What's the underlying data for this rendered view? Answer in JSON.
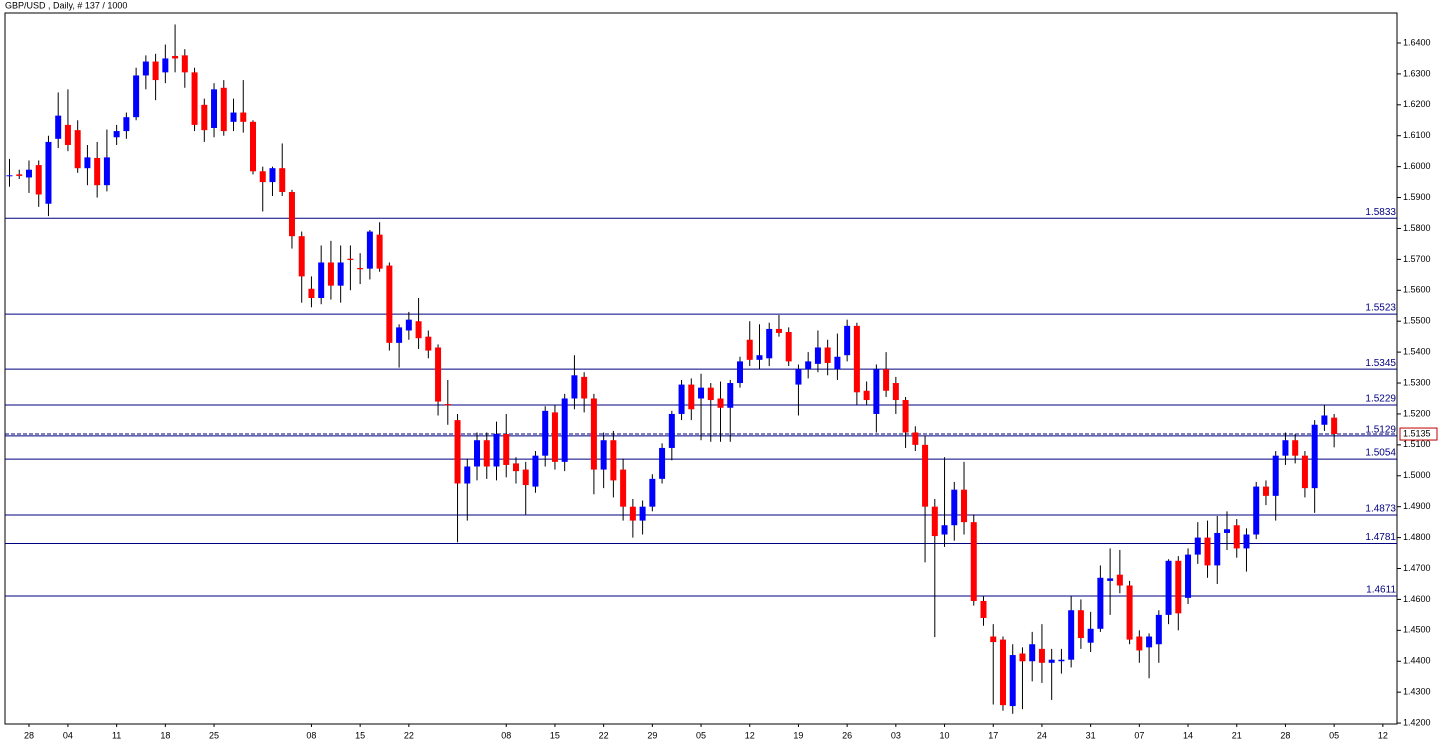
{
  "chart_data": {
    "type": "candlestick",
    "title": "GBP/USD , Daily, # 137 / 1000",
    "up_color": "#0000ff",
    "down_color": "#ff0000",
    "wick_color": "#000000",
    "level_color": "#000080",
    "grid": false,
    "ylim": [
      1.4197,
      1.6497
    ],
    "yticks": [
      {
        "value": 1.42,
        "label": "1.4200"
      },
      {
        "value": 1.43,
        "label": "1.4300"
      },
      {
        "value": 1.44,
        "label": "1.4400"
      },
      {
        "value": 1.45,
        "label": "1.4500"
      },
      {
        "value": 1.46,
        "label": "1.4600"
      },
      {
        "value": 1.47,
        "label": "1.4700"
      },
      {
        "value": 1.48,
        "label": "1.4800"
      },
      {
        "value": 1.49,
        "label": "1.4900"
      },
      {
        "value": 1.5,
        "label": "1.5000"
      },
      {
        "value": 1.51,
        "label": "1.5100"
      },
      {
        "value": 1.52,
        "label": "1.5200"
      },
      {
        "value": 1.53,
        "label": "1.5300"
      },
      {
        "value": 1.54,
        "label": "1.5400"
      },
      {
        "value": 1.55,
        "label": "1.5500"
      },
      {
        "value": 1.56,
        "label": "1.5600"
      },
      {
        "value": 1.57,
        "label": "1.5700"
      },
      {
        "value": 1.58,
        "label": "1.5800"
      },
      {
        "value": 1.59,
        "label": "1.5900"
      },
      {
        "value": 1.6,
        "label": "1.6000"
      },
      {
        "value": 1.61,
        "label": "1.6100"
      },
      {
        "value": 1.62,
        "label": "1.6200"
      },
      {
        "value": 1.63,
        "label": "1.6300"
      },
      {
        "value": 1.64,
        "label": "1.6400"
      }
    ],
    "levels": [
      1.5833,
      1.5523,
      1.5345,
      1.5229,
      1.5129,
      1.5054,
      1.4873,
      1.4781,
      1.4611
    ],
    "last_price": 1.5135,
    "categories": [
      null,
      null,
      "28",
      null,
      null,
      null,
      "04",
      null,
      null,
      null,
      null,
      "11",
      null,
      null,
      null,
      null,
      "18",
      null,
      null,
      null,
      null,
      "25",
      null,
      null,
      null,
      null,
      null,
      null,
      null,
      null,
      null,
      "08",
      null,
      null,
      null,
      null,
      "15",
      null,
      null,
      null,
      null,
      "22",
      null,
      null,
      null,
      null,
      null,
      null,
      null,
      null,
      null,
      "08",
      null,
      null,
      null,
      null,
      "15",
      null,
      null,
      null,
      null,
      "22",
      null,
      null,
      null,
      null,
      "29",
      null,
      null,
      null,
      null,
      "05",
      null,
      null,
      null,
      null,
      "12",
      null,
      null,
      null,
      null,
      "19",
      null,
      null,
      null,
      null,
      "26",
      null,
      null,
      null,
      null,
      "03",
      null,
      null,
      null,
      null,
      "10",
      null,
      null,
      null,
      null,
      "17",
      null,
      null,
      null,
      null,
      "24",
      null,
      null,
      null,
      null,
      "31",
      null,
      null,
      null,
      null,
      "07",
      null,
      null,
      null,
      null,
      "14",
      null,
      null,
      null,
      null,
      "21",
      null,
      null,
      null,
      null,
      "28",
      null,
      null,
      null,
      null,
      "05",
      null,
      null,
      null,
      null,
      "12"
    ],
    "open": [
      1.597,
      1.5975,
      1.5965,
      1.6005,
      1.588,
      1.609,
      1.6135,
      1.6118,
      1.5995,
      1.6028,
      1.594,
      1.6095,
      1.6115,
      1.616,
      1.6295,
      1.634,
      1.6305,
      1.6358,
      1.636,
      1.6305,
      1.62,
      1.6125,
      1.6255,
      1.6145,
      1.6175,
      1.6145,
      1.5985,
      1.595,
      1.5995,
      1.5918,
      1.5775,
      1.5605,
      1.5575,
      1.569,
      1.5615,
      1.5702,
      1.5672,
      1.567,
      1.578,
      1.568,
      1.543,
      1.547,
      1.55,
      1.545,
      1.5415,
      1.5232,
      1.518,
      1.4975,
      1.503,
      1.5115,
      1.503,
      1.5135,
      1.504,
      1.502,
      1.4965,
      1.5065,
      1.5205,
      1.5045,
      1.525,
      1.532,
      1.525,
      1.502,
      1.5115,
      1.502,
      1.49,
      1.4855,
      1.49,
      1.499,
      1.509,
      1.52,
      1.5295,
      1.525,
      1.5285,
      1.525,
      1.522,
      1.53,
      1.544,
      1.5375,
      1.538,
      1.5475,
      1.5465,
      1.5295,
      1.5345,
      1.5362,
      1.5415,
      1.5345,
      1.539,
      1.5485,
      1.5275,
      1.52,
      1.5345,
      1.53,
      1.5245,
      1.514,
      1.51,
      1.49,
      1.481,
      1.484,
      1.4955,
      1.485,
      1.4595,
      1.448,
      1.447,
      1.4255,
      1.4425,
      1.44,
      1.444,
      1.4395,
      1.44,
      1.4405,
      1.4565,
      1.446,
      1.4505,
      1.466,
      1.468,
      1.4645,
      1.448,
      1.4445,
      1.4455,
      1.455,
      1.4725,
      1.4605,
      1.4745,
      1.48,
      1.471,
      1.4815,
      1.484,
      1.4765,
      1.481,
      1.4965,
      1.4935,
      1.5065,
      1.5115,
      1.5065,
      1.496,
      1.5165,
      1.5188,
      null,
      null,
      null,
      null,
      null
    ],
    "high": [
      1.6025,
      1.599,
      1.602,
      1.602,
      1.61,
      1.624,
      1.625,
      1.615,
      1.607,
      1.608,
      1.612,
      1.6135,
      1.6175,
      1.632,
      1.636,
      1.6365,
      1.6395,
      1.646,
      1.638,
      1.632,
      1.622,
      1.627,
      1.628,
      1.622,
      1.628,
      1.615,
      1.6,
      1.6,
      1.6075,
      1.5925,
      1.579,
      1.5645,
      1.5745,
      1.576,
      1.5745,
      1.5745,
      1.572,
      1.5795,
      1.582,
      1.569,
      1.549,
      1.553,
      1.5575,
      1.547,
      1.5425,
      1.531,
      1.52,
      1.5055,
      1.514,
      1.514,
      1.5175,
      1.52,
      1.506,
      1.5045,
      1.508,
      1.5225,
      1.523,
      1.5265,
      1.539,
      1.5335,
      1.5265,
      1.514,
      1.5145,
      1.5055,
      1.4925,
      1.492,
      1.5005,
      1.5105,
      1.521,
      1.531,
      1.5315,
      1.533,
      1.53,
      1.5305,
      1.531,
      1.5385,
      1.55,
      1.549,
      1.5495,
      1.552,
      1.548,
      1.536,
      1.54,
      1.547,
      1.544,
      1.546,
      1.5505,
      1.5495,
      1.5305,
      1.536,
      1.54,
      1.532,
      1.5255,
      1.516,
      1.513,
      1.4925,
      1.506,
      1.498,
      1.5045,
      1.4875,
      1.461,
      1.452,
      1.448,
      1.4455,
      1.4445,
      1.4495,
      1.452,
      1.444,
      1.444,
      1.461,
      1.46,
      1.456,
      1.471,
      1.4765,
      1.476,
      1.466,
      1.45,
      1.449,
      1.4565,
      1.473,
      1.474,
      1.4765,
      1.485,
      1.4855,
      1.487,
      1.4885,
      1.486,
      1.483,
      1.498,
      1.4985,
      1.508,
      1.514,
      1.5135,
      1.508,
      1.518,
      1.523,
      1.52,
      null,
      null,
      null,
      null,
      null
    ],
    "low": [
      1.5935,
      1.596,
      1.5915,
      1.587,
      1.584,
      1.606,
      1.605,
      1.598,
      1.594,
      1.59,
      1.592,
      1.607,
      1.609,
      1.615,
      1.625,
      1.6215,
      1.627,
      1.6305,
      1.6255,
      1.6115,
      1.608,
      1.6095,
      1.61,
      1.6115,
      1.611,
      1.5975,
      1.5855,
      1.5905,
      1.5905,
      1.5735,
      1.556,
      1.5545,
      1.5555,
      1.557,
      1.556,
      1.56,
      1.562,
      1.5635,
      1.566,
      1.5405,
      1.535,
      1.544,
      1.541,
      1.538,
      1.5195,
      1.5165,
      1.4785,
      1.4855,
      1.4985,
      1.499,
      1.4985,
      1.4995,
      1.4975,
      1.4875,
      1.4945,
      1.503,
      1.502,
      1.5015,
      1.5215,
      1.5205,
      1.494,
      1.496,
      1.493,
      1.4855,
      1.48,
      1.481,
      1.4885,
      1.4975,
      1.505,
      1.518,
      1.518,
      1.5115,
      1.511,
      1.511,
      1.511,
      1.5285,
      1.5355,
      1.5345,
      1.5355,
      1.545,
      1.5355,
      1.5195,
      1.5315,
      1.5335,
      1.5325,
      1.531,
      1.537,
      1.523,
      1.523,
      1.514,
      1.5255,
      1.52,
      1.509,
      1.508,
      1.472,
      1.4478,
      1.477,
      1.479,
      1.481,
      1.458,
      1.4515,
      1.426,
      1.424,
      1.423,
      1.4245,
      1.4335,
      1.433,
      1.4275,
      1.436,
      1.438,
      1.444,
      1.443,
      1.4495,
      1.455,
      1.462,
      1.4455,
      1.4395,
      1.4345,
      1.4395,
      1.452,
      1.45,
      1.4585,
      1.4715,
      1.467,
      1.465,
      1.476,
      1.4735,
      1.469,
      1.4795,
      1.4905,
      1.4855,
      1.5035,
      1.504,
      1.493,
      1.488,
      1.5145,
      1.5092,
      null,
      null,
      null,
      null,
      null
    ],
    "close": [
      1.5972,
      1.597,
      1.599,
      1.591,
      1.608,
      1.6165,
      1.607,
      1.5995,
      1.603,
      1.594,
      1.603,
      1.6115,
      1.616,
      1.6295,
      1.634,
      1.628,
      1.635,
      1.635,
      1.6305,
      1.6135,
      1.6118,
      1.625,
      1.6115,
      1.6175,
      1.6145,
      1.5985,
      1.595,
      1.5995,
      1.5918,
      1.5775,
      1.5645,
      1.5575,
      1.569,
      1.5615,
      1.569,
      1.5698,
      1.5668,
      1.579,
      1.567,
      1.543,
      1.548,
      1.5505,
      1.5445,
      1.5405,
      1.524,
      1.5228,
      1.4975,
      1.503,
      1.5115,
      1.503,
      1.5135,
      1.5035,
      1.5015,
      1.497,
      1.5065,
      1.521,
      1.5045,
      1.525,
      1.5325,
      1.525,
      1.502,
      1.5115,
      1.4985,
      1.49,
      1.4855,
      1.49,
      1.499,
      1.509,
      1.52,
      1.5295,
      1.5215,
      1.5285,
      1.5245,
      1.522,
      1.53,
      1.537,
      1.5375,
      1.539,
      1.5475,
      1.5462,
      1.537,
      1.5345,
      1.537,
      1.5415,
      1.5365,
      1.5385,
      1.5485,
      1.527,
      1.5245,
      1.5345,
      1.5275,
      1.5245,
      1.514,
      1.51,
      1.49,
      1.4805,
      1.484,
      1.4955,
      1.485,
      1.4595,
      1.454,
      1.4462,
      1.4258,
      1.442,
      1.44,
      1.4455,
      1.4395,
      1.4405,
      1.4405,
      1.4565,
      1.4475,
      1.4505,
      1.467,
      1.4668,
      1.4645,
      1.447,
      1.4435,
      1.448,
      1.455,
      1.4725,
      1.4555,
      1.4745,
      1.48,
      1.471,
      1.4815,
      1.4827,
      1.4765,
      1.481,
      1.4965,
      1.4935,
      1.5065,
      1.5115,
      1.5065,
      1.496,
      1.5165,
      1.5195,
      1.5135,
      null,
      null,
      null,
      null,
      null
    ]
  }
}
